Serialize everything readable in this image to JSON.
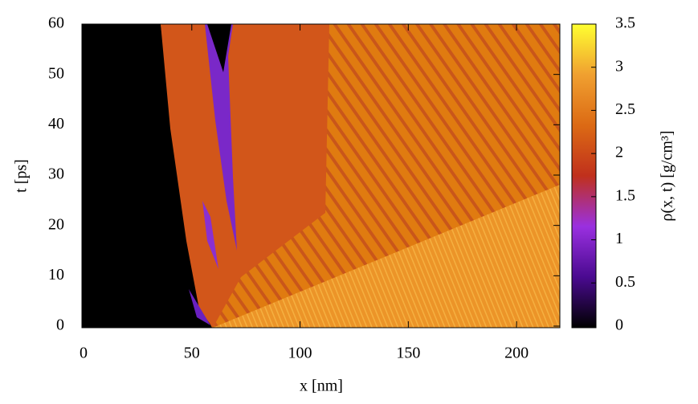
{
  "chart_data": {
    "type": "heatmap",
    "xlabel": "x [nm]",
    "ylabel": "t [ps]",
    "xlim": [
      0,
      220
    ],
    "ylim": [
      0,
      60
    ],
    "xticks": [
      0,
      50,
      100,
      150,
      200
    ],
    "yticks": [
      0,
      10,
      20,
      30,
      40,
      50,
      60
    ],
    "colorbar": {
      "label": "ρ(x, t) [g/cm³]",
      "lim": [
        0,
        3.5
      ],
      "ticks": [
        0,
        0.5,
        1,
        1.5,
        2,
        2.5,
        3,
        3.5
      ],
      "colormap": [
        "#000000",
        "#4a0a90",
        "#9a30e0",
        "#c0301c",
        "#dc6a14",
        "#f0a030",
        "#ffff30"
      ]
    }
  }
}
